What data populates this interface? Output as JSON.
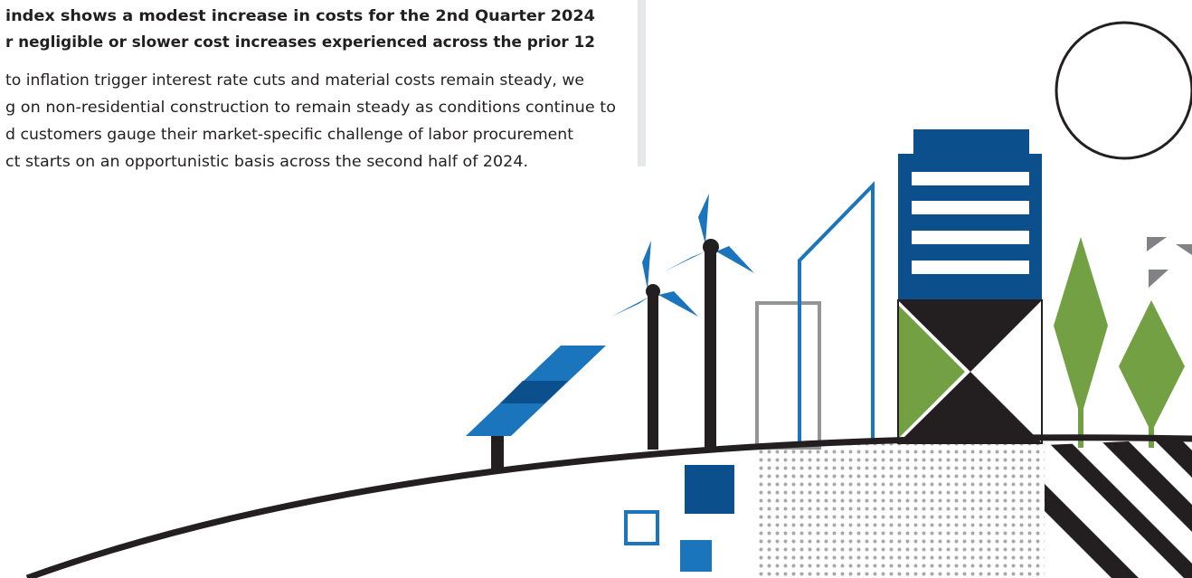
{
  "paragraph": {
    "bold_lines": [
      "index shows a modest increase in costs for the 2nd Quarter 2024",
      "r negligible or slower cost increases experienced across the prior 12"
    ],
    "lines": [
      "to inflation trigger interest rate cuts and material costs remain steady, we",
      "g on non-residential construction to remain steady as conditions continue to",
      "d customers gauge their market-specific challenge of labor procurement",
      "ct starts on an opportunistic basis across the second half of 2024."
    ]
  }
}
